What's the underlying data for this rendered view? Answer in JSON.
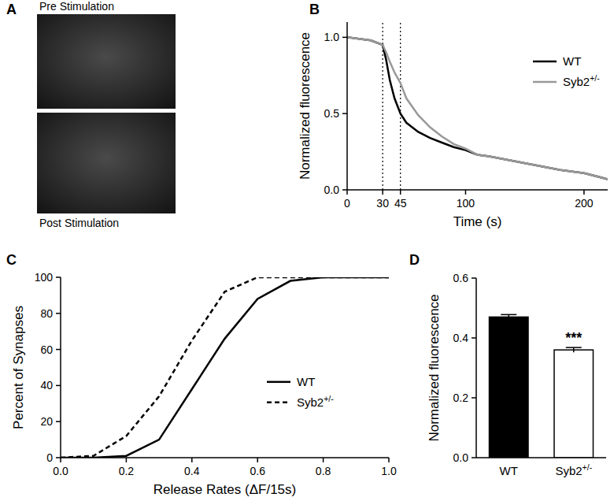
{
  "chart_data": [
    {
      "type": "image",
      "panel": "A",
      "images": [
        {
          "title": "Pre Stimulation"
        },
        {
          "title": "Post Stimulation"
        }
      ]
    },
    {
      "type": "line",
      "panel": "B",
      "x": [
        0,
        10,
        20,
        30,
        33,
        36,
        40,
        45,
        50,
        60,
        70,
        80,
        90,
        100,
        110,
        120,
        140,
        160,
        180,
        200,
        220
      ],
      "series": [
        {
          "name": "WT",
          "color": "#000000",
          "line_style": "solid",
          "values": [
            1.0,
            0.99,
            0.98,
            0.95,
            0.85,
            0.72,
            0.6,
            0.5,
            0.44,
            0.38,
            0.34,
            0.31,
            0.28,
            0.26,
            0.23,
            0.22,
            0.19,
            0.16,
            0.13,
            0.11,
            0.07
          ]
        },
        {
          "name": "Syb2+/-",
          "color": "#999999",
          "line_style": "solid",
          "values": [
            1.0,
            0.99,
            0.98,
            0.95,
            0.9,
            0.84,
            0.77,
            0.7,
            0.6,
            0.49,
            0.41,
            0.35,
            0.3,
            0.27,
            0.23,
            0.22,
            0.19,
            0.16,
            0.13,
            0.11,
            0.07
          ]
        }
      ],
      "x_label": "Time (s)",
      "y_label": "Normalized fluorescence",
      "xlim": [
        0,
        220
      ],
      "ylim": [
        0,
        1.1
      ],
      "xticks": [
        0,
        30,
        45,
        100,
        200
      ],
      "yticks": [
        {
          "value": 0,
          "label": "0.0"
        },
        {
          "value": 0.5,
          "label": "0.5"
        },
        {
          "value": 1,
          "label": "1.0"
        }
      ],
      "vlines": [
        30,
        45
      ],
      "legend": "upper right"
    },
    {
      "type": "line",
      "panel": "C",
      "x": [
        0,
        0.1,
        0.2,
        0.3,
        0.4,
        0.5,
        0.6,
        0.7,
        0.8,
        0.9,
        1.0
      ],
      "series": [
        {
          "name": "WT",
          "color": "#000000",
          "line_style": "solid",
          "values": [
            0,
            0,
            1,
            10,
            38,
            66,
            88,
            98,
            100,
            100,
            100
          ]
        },
        {
          "name": "Syb2+/-",
          "color": "#000000",
          "line_style": "dashed",
          "values": [
            0,
            1,
            12,
            34,
            65,
            92,
            100,
            100,
            100,
            100,
            100
          ]
        }
      ],
      "x_label": "Release Rates (ΔF/15s)",
      "y_label": "Percent of Synapses",
      "xlim": [
        0,
        1
      ],
      "ylim": [
        0,
        100
      ],
      "xticks": [
        {
          "value": 0,
          "label": "0.0"
        },
        {
          "value": 0.2,
          "label": "0.2"
        },
        {
          "value": 0.4,
          "label": "0.4"
        },
        {
          "value": 0.6,
          "label": "0.6"
        },
        {
          "value": 0.8,
          "label": "0.8"
        },
        {
          "value": 1,
          "label": "1.0"
        }
      ],
      "yticks": [
        0,
        20,
        40,
        60,
        80,
        100
      ],
      "legend": "right"
    },
    {
      "type": "bar",
      "panel": "D",
      "categories": [
        "WT",
        "Syb2+/-"
      ],
      "values": [
        0.47,
        0.36
      ],
      "errors": [
        0.008,
        0.008
      ],
      "colors": [
        "#000000",
        "#ffffff"
      ],
      "y_label": "Normalized fluorescence",
      "ylim": [
        0,
        0.6
      ],
      "yticks": [
        {
          "value": 0,
          "label": "0.0"
        },
        {
          "value": 0.2,
          "label": "0.2"
        },
        {
          "value": 0.4,
          "label": "0.4"
        },
        {
          "value": 0.6,
          "label": "0.6"
        }
      ],
      "annotations": [
        {
          "text": "***",
          "x": "Syb2+/-"
        }
      ]
    }
  ]
}
